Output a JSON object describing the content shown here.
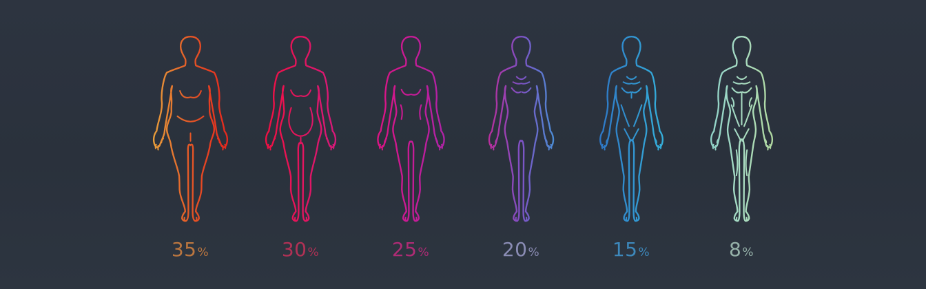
{
  "page": {
    "background": "#2b323d",
    "description": "body-fat-percentage-figure-scale"
  },
  "figures": [
    {
      "id": "figure-35",
      "percent": "35",
      "percent_symbol": "%",
      "body_type": "obese",
      "fat_factor": 1.0,
      "gradient": [
        "#e9a83e",
        "#e55726",
        "#e7211c"
      ],
      "label_color": "#c87c40"
    },
    {
      "id": "figure-30",
      "percent": "30",
      "percent_symbol": "%",
      "body_type": "overweight",
      "fat_factor": 0.68,
      "gradient": [
        "#f30f3d",
        "#d41a80"
      ],
      "label_color": "#bd3157"
    },
    {
      "id": "figure-25",
      "percent": "25",
      "percent_symbol": "%",
      "body_type": "average",
      "fat_factor": 0.42,
      "gradient": [
        "#e21280",
        "#aa25ac"
      ],
      "label_color": "#bb2b7a"
    },
    {
      "id": "figure-20",
      "percent": "20",
      "percent_symbol": "%",
      "body_type": "lean",
      "fat_factor": 0.26,
      "gradient": [
        "#ca2390",
        "#7e52c5",
        "#3d9edb"
      ],
      "label_color": "#9394be"
    },
    {
      "id": "figure-15",
      "percent": "15",
      "percent_symbol": "%",
      "body_type": "fit",
      "fat_factor": 0.12,
      "gradient": [
        "#2d6ec3",
        "#36b9de"
      ],
      "label_color": "#3f90c6"
    },
    {
      "id": "figure-8",
      "percent": "8",
      "percent_symbol": "%",
      "body_type": "athletic",
      "fat_factor": 0.02,
      "gradient": [
        "#86cfca",
        "#a9dcc3",
        "#b3d893"
      ],
      "label_color": "#a0bdb3"
    }
  ]
}
